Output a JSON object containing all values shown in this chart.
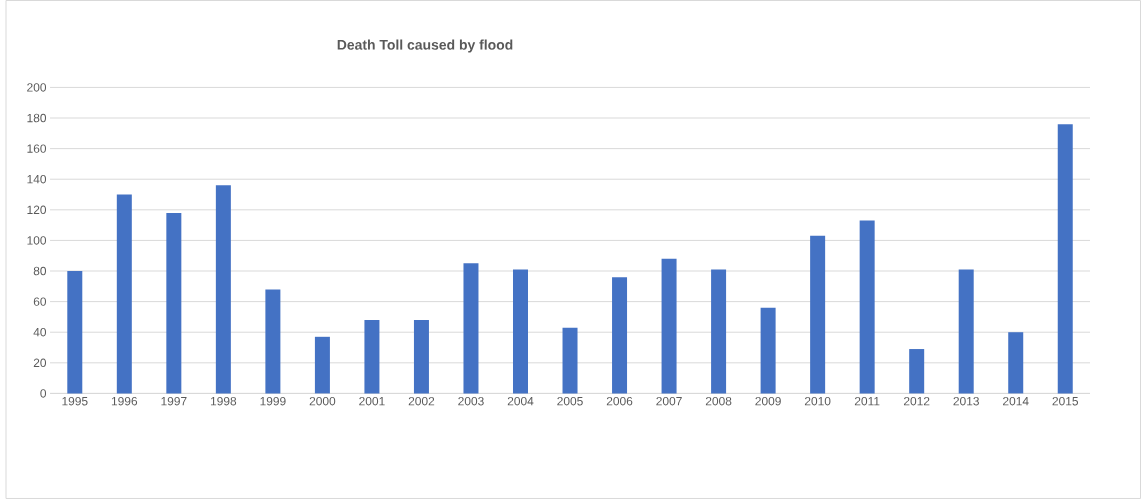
{
  "chart_data": {
    "type": "bar",
    "title": "Death Toll caused by flood",
    "categories": [
      "1995",
      "1996",
      "1997",
      "1998",
      "1999",
      "2000",
      "2001",
      "2002",
      "2003",
      "2004",
      "2005",
      "2006",
      "2007",
      "2008",
      "2009",
      "2010",
      "2011",
      "2012",
      "2013",
      "2014",
      "2015"
    ],
    "values": [
      80,
      130,
      118,
      136,
      68,
      37,
      48,
      48,
      85,
      81,
      43,
      76,
      88,
      81,
      56,
      103,
      113,
      29,
      81,
      40,
      176
    ],
    "color": "#4472c4",
    "ylim": [
      0,
      200
    ],
    "yticks": [
      0,
      20,
      40,
      60,
      80,
      100,
      120,
      140,
      160,
      180,
      200
    ],
    "grid": "y"
  }
}
